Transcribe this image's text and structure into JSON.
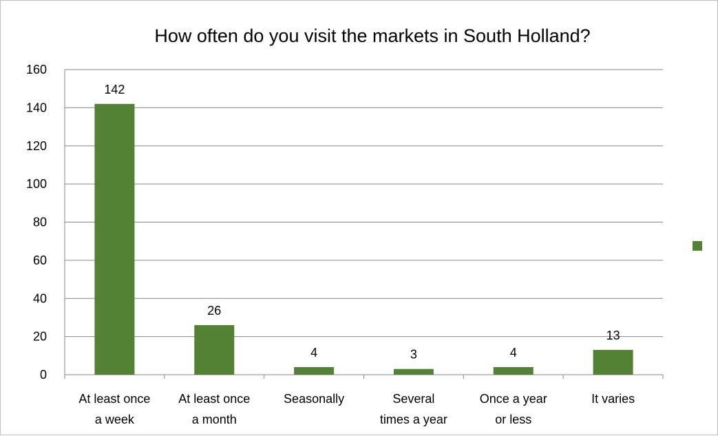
{
  "chart_data": {
    "type": "bar",
    "title": "How often do you visit the markets in South Holland?",
    "categories": [
      [
        "At least once",
        "a week"
      ],
      [
        "At least once",
        "a month"
      ],
      [
        "Seasonally"
      ],
      [
        "Several",
        "times a year"
      ],
      [
        "Once a year",
        "or less"
      ],
      [
        "It varies"
      ]
    ],
    "values": [
      142,
      26,
      4,
      3,
      4,
      13
    ],
    "data_labels": [
      "142",
      "26",
      "4",
      "3",
      "4",
      "13"
    ],
    "ylim": [
      0,
      160
    ],
    "yticks": [
      0,
      20,
      40,
      60,
      80,
      100,
      120,
      140,
      160
    ],
    "grid": true,
    "legend": "right",
    "bar_color": "#548235",
    "grid_color": "#868686"
  }
}
